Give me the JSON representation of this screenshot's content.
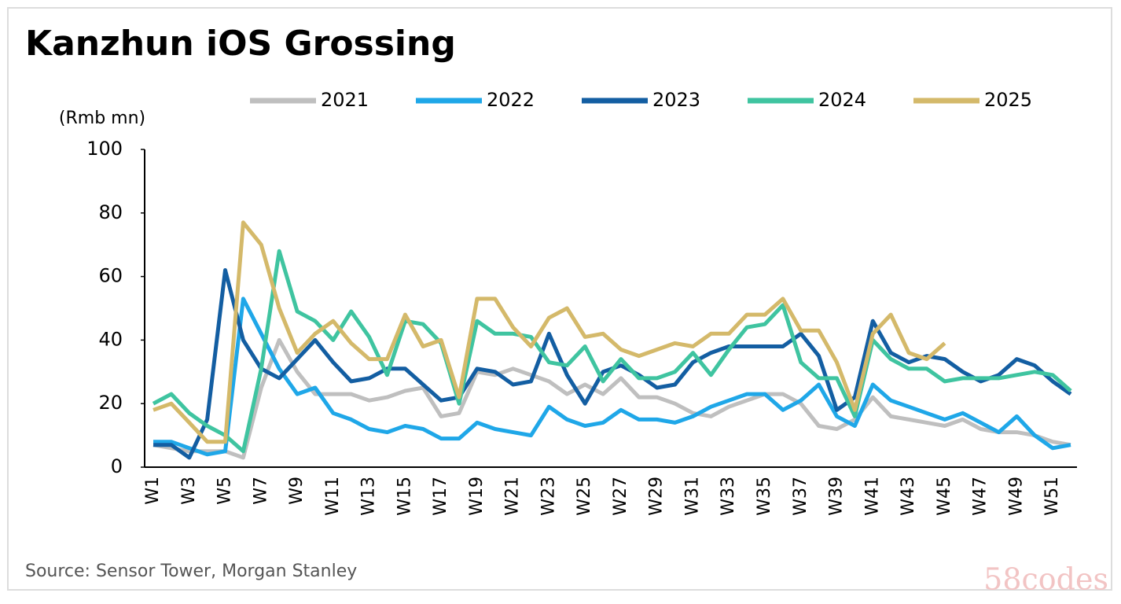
{
  "chart_data": {
    "type": "line",
    "title": "Kanzhun iOS Grossing",
    "y_label": "(Rmb mn)",
    "source": "Source: Sensor Tower, Morgan Stanley",
    "watermark": "58codes",
    "categories": [
      "W1",
      null,
      "W3",
      null,
      "W5",
      null,
      "W7",
      null,
      "W9",
      null,
      "W11",
      null,
      "W13",
      null,
      "W15",
      null,
      "W17",
      null,
      "W19",
      null,
      "W21",
      null,
      "W23",
      null,
      "W25",
      null,
      "W27",
      null,
      "W29",
      null,
      "W31",
      null,
      "W33",
      null,
      "W35",
      null,
      "W37",
      null,
      "W39",
      null,
      "W41",
      null,
      "W43",
      null,
      "W45",
      null,
      "W47",
      null,
      "W49",
      null,
      "W51",
      null
    ],
    "ylim": [
      0,
      100
    ],
    "yticks": [
      0,
      20,
      40,
      60,
      80,
      100
    ],
    "grid": false,
    "legend": "top",
    "series": [
      {
        "name": "2021",
        "color": "#bfbfbf",
        "values": [
          7,
          6,
          5,
          5,
          5,
          3,
          25,
          40,
          30,
          23,
          23,
          23,
          21,
          22,
          24,
          25,
          16,
          17,
          30,
          29,
          31,
          29,
          27,
          23,
          26,
          23,
          28,
          22,
          22,
          20,
          17,
          16,
          19,
          21,
          23,
          23,
          20,
          13,
          12,
          15,
          22,
          16,
          15,
          14,
          13,
          15,
          12,
          11,
          11,
          10,
          8,
          7
        ]
      },
      {
        "name": "2022",
        "color": "#1fa7e8",
        "values": [
          8,
          8,
          6,
          4,
          5,
          53,
          42,
          31,
          23,
          25,
          17,
          15,
          12,
          11,
          13,
          12,
          9,
          9,
          14,
          12,
          11,
          10,
          19,
          15,
          13,
          14,
          18,
          15,
          15,
          14,
          16,
          19,
          21,
          23,
          23,
          18,
          21,
          26,
          16,
          13,
          26,
          21,
          19,
          17,
          15,
          17,
          14,
          11,
          16,
          10,
          6,
          7
        ]
      },
      {
        "name": "2023",
        "color": "#135ea2",
        "values": [
          7,
          7,
          3,
          15,
          62,
          40,
          31,
          28,
          34,
          40,
          33,
          27,
          28,
          31,
          31,
          26,
          21,
          22,
          31,
          30,
          26,
          27,
          42,
          29,
          20,
          30,
          32,
          29,
          25,
          26,
          33,
          36,
          38,
          38,
          38,
          38,
          42,
          35,
          18,
          22,
          46,
          36,
          33,
          35,
          34,
          30,
          27,
          29,
          34,
          32,
          27,
          23
        ]
      },
      {
        "name": "2024",
        "color": "#3fc4a0",
        "values": [
          20,
          23,
          17,
          13,
          10,
          5,
          31,
          68,
          49,
          46,
          40,
          49,
          41,
          29,
          46,
          45,
          39,
          20,
          46,
          42,
          42,
          41,
          33,
          32,
          38,
          27,
          34,
          28,
          28,
          30,
          36,
          29,
          37,
          44,
          45,
          51,
          33,
          28,
          28,
          16,
          40,
          34,
          31,
          31,
          27,
          28,
          28,
          28,
          29,
          30,
          29,
          24
        ]
      },
      {
        "name": "2025",
        "color": "#d4b96a",
        "values": [
          18,
          20,
          14,
          8,
          8,
          77,
          70,
          50,
          36,
          42,
          46,
          39,
          34,
          34,
          48,
          38,
          40,
          22,
          53,
          53,
          44,
          38,
          47,
          50,
          41,
          42,
          37,
          35,
          37,
          39,
          38,
          42,
          42,
          48,
          48,
          53,
          43,
          43,
          33,
          18,
          42,
          48,
          36,
          34,
          39,
          null,
          null,
          null,
          null,
          null,
          null,
          null
        ]
      }
    ]
  }
}
